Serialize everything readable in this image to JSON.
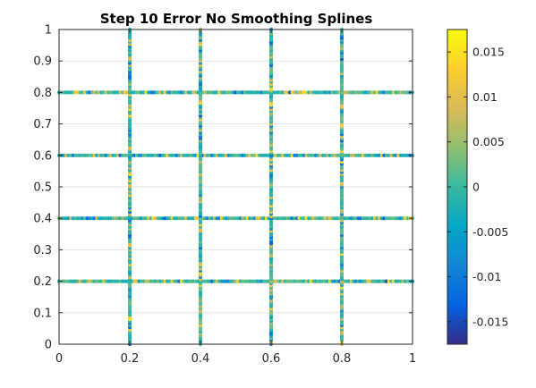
{
  "chart_data": {
    "type": "scatter",
    "title": "Step 10 Error No Smoothing Splines",
    "xlabel": "",
    "ylabel": "",
    "xlim": [
      0,
      1
    ],
    "ylim": [
      0,
      1
    ],
    "x_ticks": [
      0,
      0.2,
      0.4,
      0.6,
      0.8,
      1
    ],
    "y_ticks": [
      0,
      0.1,
      0.2,
      0.3,
      0.4,
      0.5,
      0.6,
      0.7,
      0.8,
      0.9,
      1
    ],
    "x_tick_labels": [
      "0",
      "0.2",
      "0.4",
      "0.6",
      "0.8",
      "1"
    ],
    "y_tick_labels": [
      "0",
      "0.1",
      "0.2",
      "0.3",
      "0.4",
      "0.5",
      "0.6",
      "0.7",
      "0.8",
      "0.9",
      "1"
    ],
    "grid": true,
    "vertical_lines_x": [
      0.2,
      0.4,
      0.6,
      0.8
    ],
    "horizontal_lines_y": [
      0.2,
      0.4,
      0.6,
      0.8
    ],
    "colorbar": {
      "colormap": "parula",
      "clim": [
        -0.0175,
        0.0175
      ],
      "ticks": [
        -0.015,
        -0.01,
        -0.005,
        0,
        0.005,
        0.01,
        0.015
      ],
      "tick_labels": [
        "-0.015",
        "-0.01",
        "-0.005",
        "0",
        "0.005",
        "0.01",
        "0.015"
      ]
    }
  }
}
